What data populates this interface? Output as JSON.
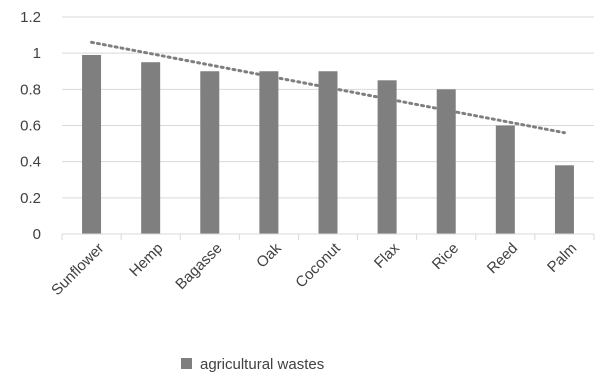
{
  "chart_data": {
    "type": "bar",
    "categories": [
      "Sunflower",
      "Hemp",
      "Bagasse",
      "Oak",
      "Coconut",
      "Flax",
      "Rice",
      "Reed",
      "Palm"
    ],
    "series": [
      {
        "name": "agricultural wastes",
        "values": [
          0.99,
          0.95,
          0.9,
          0.9,
          0.9,
          0.85,
          0.8,
          0.6,
          0.38
        ]
      }
    ],
    "trendline": {
      "type": "linear",
      "style": "dotted",
      "start": 1.06,
      "end": 0.56
    },
    "yticks": [
      "0",
      "0.2",
      "0.4",
      "0.6",
      "0.8",
      "1",
      "1.2"
    ],
    "ylim": [
      0,
      1.2
    ],
    "grid": true,
    "legend_position": "bottom",
    "title": "",
    "xlabel": "",
    "ylabel": "",
    "colors": {
      "bar": "#7f7f7f",
      "trend": "#7f7f7f",
      "grid": "#d9d9d9",
      "axis": "#d9d9d9",
      "text": "#404040"
    }
  }
}
